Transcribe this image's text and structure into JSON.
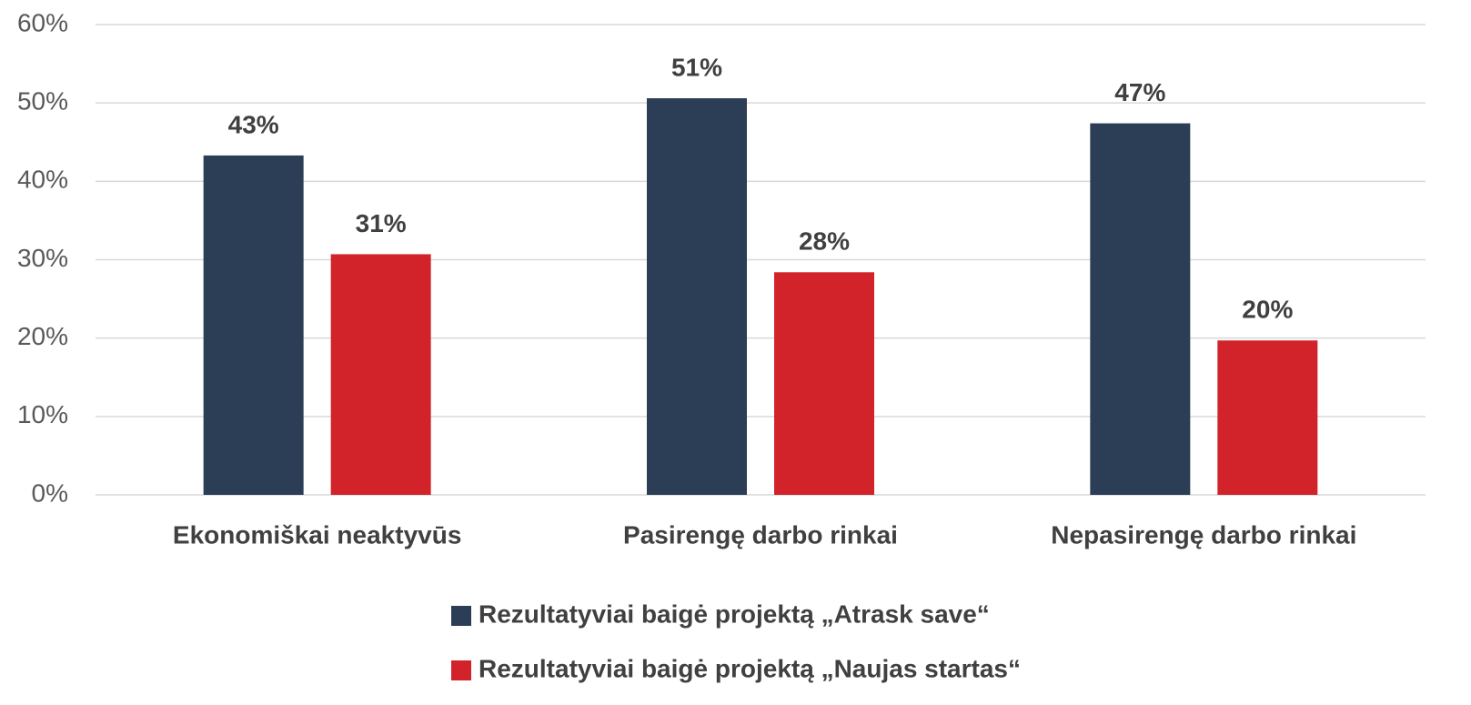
{
  "chart_data": {
    "type": "bar",
    "categories": [
      "Ekonomiškai neaktyvūs",
      "Pasirengę darbo rinkai",
      "Nepasirengę darbo rinkai"
    ],
    "series": [
      {
        "name": "Rezultatyviai baigė projektą „Atrask save“",
        "color": "#2c3e56",
        "values": [
          43.3,
          50.6,
          47.4
        ],
        "value_labels": [
          "43%",
          "51%",
          "47%"
        ]
      },
      {
        "name": "Rezultatyviai baigė projektą „Naujas startas“",
        "color": "#d2232b",
        "values": [
          30.7,
          28.4,
          19.7
        ],
        "value_labels": [
          "31%",
          "28%",
          "20%"
        ]
      }
    ],
    "ylim": [
      0,
      60
    ],
    "yticks": [
      {
        "value": 0,
        "label": "0%"
      },
      {
        "value": 10,
        "label": "10%"
      },
      {
        "value": 20,
        "label": "20%"
      },
      {
        "value": 30,
        "label": "30%"
      },
      {
        "value": 40,
        "label": "40%"
      },
      {
        "value": 50,
        "label": "50%"
      },
      {
        "value": 60,
        "label": "60%"
      }
    ],
    "grid": true,
    "legend": "bottom"
  }
}
